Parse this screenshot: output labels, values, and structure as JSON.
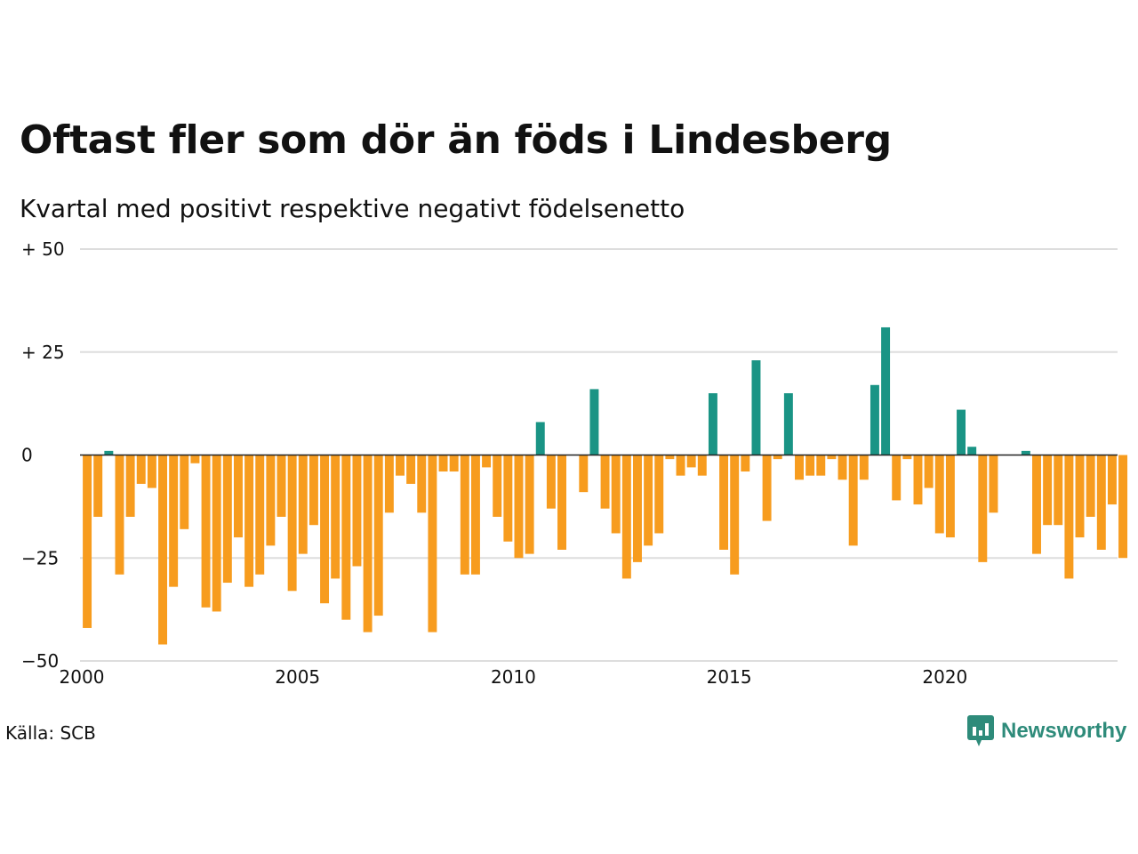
{
  "title": "Oftast fler som dör än föds i Lindesberg",
  "subtitle": "Kvartal med positivt respektive negativt födelsenetto",
  "source": "Källa: SCB",
  "brand": "Newsworthy",
  "colors": {
    "positive": "#1a9485",
    "negative": "#f79c1e",
    "grid": "#dddddd",
    "zero_line": "#222222",
    "brand": "#2e8b7a"
  },
  "chart_data": {
    "type": "bar",
    "x_start": 2000,
    "x_end": 2024,
    "periods_per_year": 4,
    "values": [
      -42,
      -15,
      1,
      -29,
      -15,
      -7,
      -8,
      -46,
      -32,
      -18,
      -2,
      -37,
      -38,
      -31,
      -20,
      -32,
      -29,
      -22,
      -15,
      -33,
      -24,
      -17,
      -36,
      -30,
      -40,
      -27,
      -43,
      -39,
      -14,
      -5,
      -7,
      -14,
      -43,
      -4,
      -4,
      -29,
      -29,
      -3,
      -15,
      -21,
      -25,
      -24,
      8,
      -13,
      -23,
      0,
      -9,
      16,
      -13,
      -19,
      -30,
      -26,
      -22,
      -19,
      -1,
      -5,
      -3,
      -5,
      15,
      -23,
      -29,
      -4,
      23,
      -16,
      -1,
      15,
      -6,
      -5,
      -5,
      -1,
      -6,
      -22,
      -6,
      17,
      31,
      -11,
      -1,
      -12,
      -8,
      -19,
      -20,
      11,
      2,
      -26,
      -14,
      0,
      0,
      1,
      -24,
      -17,
      -17,
      -30,
      -20,
      -15,
      -23,
      -12,
      -25
    ],
    "ylim": [
      -50,
      50
    ],
    "yticks": [
      {
        "value": 50,
        "label": "+ 50"
      },
      {
        "value": 25,
        "label": "+ 25"
      },
      {
        "value": 0,
        "label": "0"
      },
      {
        "value": -25,
        "label": "−25"
      },
      {
        "value": -50,
        "label": "−50"
      }
    ],
    "xticks": [
      {
        "value": 2000,
        "label": "2000"
      },
      {
        "value": 2005,
        "label": "2005"
      },
      {
        "value": 2010,
        "label": "2010"
      },
      {
        "value": 2015,
        "label": "2015"
      },
      {
        "value": 2020,
        "label": "2020"
      }
    ],
    "grid": true
  }
}
